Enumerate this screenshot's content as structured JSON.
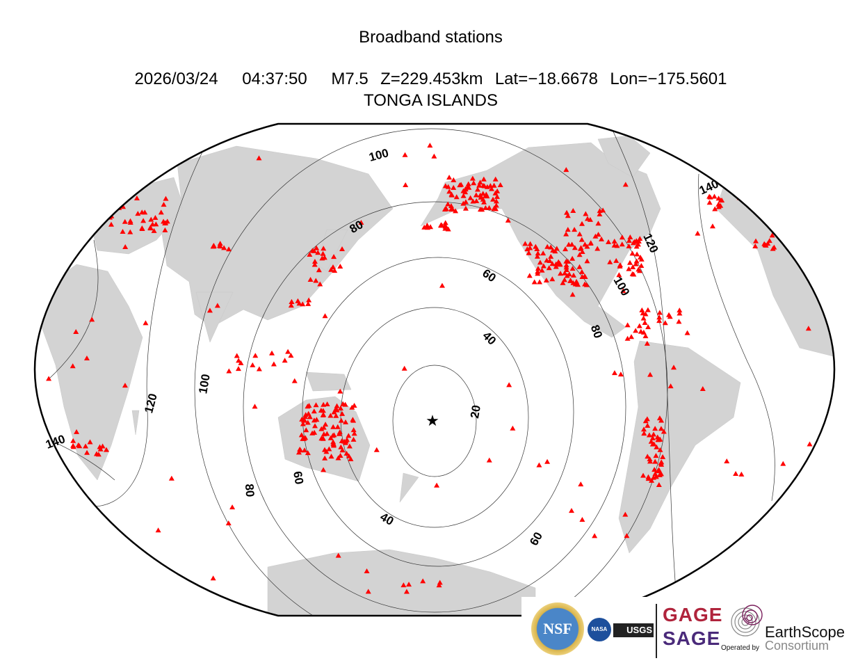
{
  "title": "Broadband stations",
  "event": {
    "line": "2026/03/24    04:37:50    M7.5  Z=229.453km  Lat=−18.6678  Lon=−175.5601",
    "date": "2026/03/24",
    "time": "04:37:50",
    "magnitude": "M7.5",
    "depth": "Z=229.453km",
    "lat": "Lat=−18.6678",
    "lon": "Lon=−175.5601",
    "region": "TONGA ISLANDS"
  },
  "map": {
    "projection": "robinson",
    "land_color": "#d3d3d3",
    "station_color": "#ff0000",
    "station_marker": "triangle",
    "epicenter_marker": "star",
    "distance_contour_labels": [
      "20",
      "40",
      "40",
      "60",
      "60",
      "60",
      "80",
      "80",
      "80",
      "100",
      "100",
      "100",
      "120",
      "120",
      "140",
      "140"
    ]
  },
  "logos": {
    "nsf": "NSF",
    "nasa": "NASA",
    "usgs": "USGS",
    "gage": "GAGE",
    "sage": "SAGE",
    "operated_by": "Operated by",
    "earthscope": "EarthScope",
    "consortium": "Consortium"
  }
}
